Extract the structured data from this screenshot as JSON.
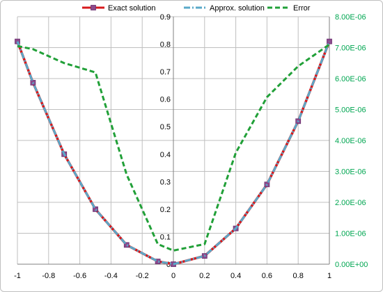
{
  "chart_data": {
    "type": "line",
    "x": [
      -1,
      -0.9,
      -0.7,
      -0.5,
      -0.3,
      -0.1,
      0,
      0.2,
      0.4,
      0.6,
      0.8,
      1
    ],
    "xlim": [
      -1,
      1
    ],
    "xticks": [
      "-1",
      "-0.8",
      "-0.6",
      "-0.4",
      "-0.2",
      "0",
      "0.2",
      "0.4",
      "0.6",
      "0.8",
      "1"
    ],
    "ylim": [
      0,
      0.9
    ],
    "yticks": [
      "0",
      "0.1",
      "0.2",
      "0.3",
      "0.4",
      "0.5",
      "0.6",
      "0.7",
      "0.8",
      "0.9"
    ],
    "y2lim": [
      0,
      8e-06
    ],
    "y2ticks": [
      "0.00E+00",
      "1.00E-06",
      "2.00E-06",
      "3.00E-06",
      "4.00E-06",
      "5.00E-06",
      "6.00E-06",
      "7.00E-06",
      "8.00E-06"
    ],
    "grid": true,
    "legend_position": "top",
    "series": [
      {
        "name": "Exact solution",
        "axis": "left",
        "color": "#d7191c",
        "style": "solid",
        "marker": "square",
        "values": [
          0.81,
          0.66,
          0.4,
          0.2,
          0.07,
          0.01,
          0.0,
          0.03,
          0.13,
          0.29,
          0.52,
          0.81
        ]
      },
      {
        "name": "Approx. solution",
        "axis": "left",
        "color": "#5aa9c9",
        "style": "dashdot",
        "values": [
          0.81,
          0.66,
          0.4,
          0.2,
          0.07,
          0.01,
          0.0,
          0.03,
          0.13,
          0.29,
          0.52,
          0.81
        ]
      },
      {
        "name": "Error",
        "axis": "right",
        "color": "#21a038",
        "style": "dashed",
        "x": [
          -1,
          -0.9,
          -0.7,
          -0.5,
          -0.3,
          -0.1,
          0,
          0.2,
          0.4,
          0.6,
          0.8,
          1
        ],
        "values": [
          7.05e-06,
          6.95e-06,
          6.5e-06,
          6.2e-06,
          2.9e-06,
          6.5e-07,
          4.4e-07,
          6.5e-07,
          3.6e-06,
          5.4e-06,
          6.4e-06,
          7.1e-06
        ]
      }
    ]
  }
}
